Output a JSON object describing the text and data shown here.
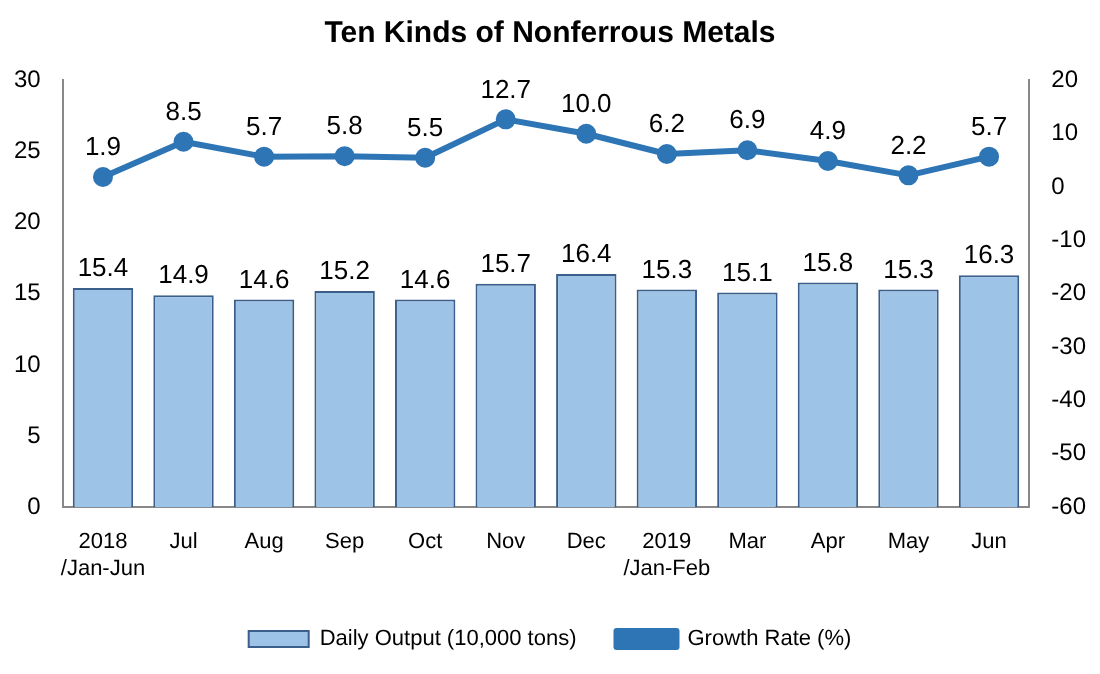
{
  "chart_data": {
    "type": "bar",
    "title": "Ten Kinds of Nonferrous Metals",
    "categories": [
      "2018\n/Jan-Jun",
      "Jul",
      "Aug",
      "Sep",
      "Oct",
      "Nov",
      "Dec",
      "2019\n/Jan-Feb",
      "Mar",
      "Apr",
      "May",
      "Jun"
    ],
    "series": [
      {
        "name": "Daily Output (10,000 tons)",
        "color": "#9dc3e6",
        "values": [
          15.4,
          14.9,
          14.6,
          15.2,
          14.6,
          15.7,
          16.4,
          15.3,
          15.1,
          15.8,
          15.3,
          16.3
        ],
        "value_labels": [
          "15.4",
          "14.9",
          "14.6",
          "15.2",
          "14.6",
          "15.7",
          "16.4",
          "15.3",
          "15.1",
          "15.8",
          "15.3",
          "16.3"
        ]
      },
      {
        "name": "Growth Rate (%)",
        "type": "line",
        "axis": "y2",
        "color": "#2e75b6",
        "values": [
          1.9,
          8.5,
          5.7,
          5.8,
          5.5,
          12.7,
          10.0,
          6.2,
          6.9,
          4.9,
          2.2,
          5.7
        ],
        "value_labels": [
          "1.9",
          "8.5",
          "5.7",
          "5.8",
          "5.5",
          "12.7",
          "10.0",
          "6.2",
          "6.9",
          "4.9",
          "2.2",
          "5.7"
        ]
      }
    ],
    "ylim": [
      0,
      30
    ],
    "yticks": [
      0,
      5,
      10,
      15,
      20,
      25,
      30
    ],
    "y2lim": [
      -60,
      20
    ],
    "y2ticks": [
      -60,
      -50,
      -40,
      -30,
      -20,
      -10,
      0,
      10,
      20
    ],
    "grid": false,
    "legend": "bottom",
    "marker": "circle",
    "line_style": "solid"
  }
}
